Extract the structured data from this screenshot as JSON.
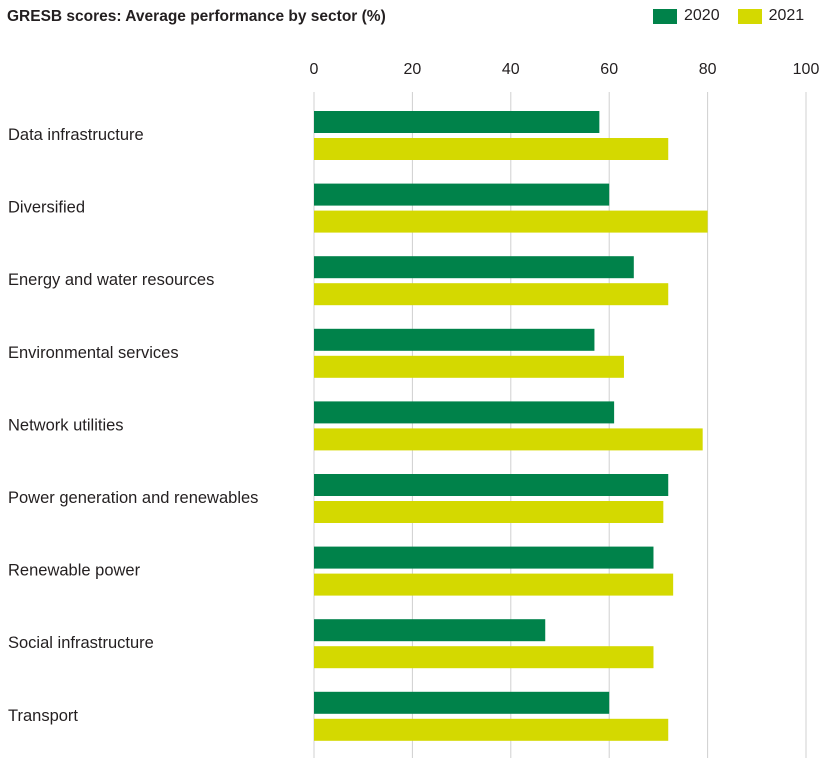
{
  "chart_data": {
    "type": "bar",
    "orientation": "horizontal",
    "title": "GRESB scores: Average performance by sector (%)",
    "categories": [
      "Data infrastructure",
      "Diversified",
      "Energy and water resources",
      "Environmental services",
      "Network utilities",
      "Power generation and renewables",
      "Renewable power",
      "Social infrastructure",
      "Transport"
    ],
    "series": [
      {
        "name": "2020",
        "color": "#00824a",
        "values": [
          58,
          60,
          65,
          57,
          61,
          72,
          69,
          47,
          60
        ]
      },
      {
        "name": "2021",
        "color": "#d4d900",
        "values": [
          72,
          80,
          72,
          63,
          79,
          71,
          73,
          69,
          72
        ]
      }
    ],
    "xlim": [
      0,
      100
    ],
    "xticks": [
      "0",
      "20",
      "40",
      "60",
      "80",
      "100"
    ],
    "xaxis_position": "top",
    "grid": true,
    "legend_position": "top-right"
  }
}
